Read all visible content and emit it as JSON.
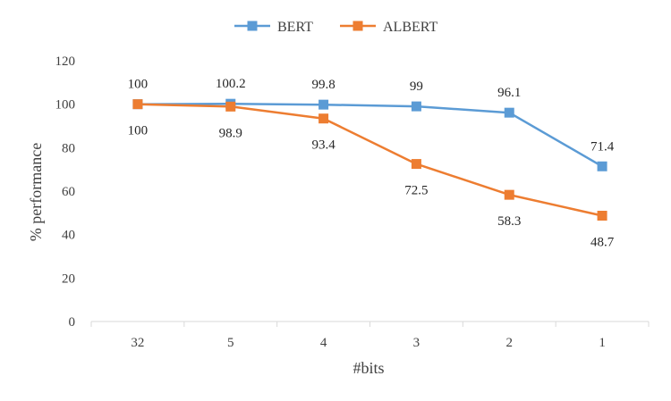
{
  "chart_data": {
    "type": "line",
    "title": "",
    "xlabel": "#bits",
    "ylabel": "% performance",
    "categories": [
      "32",
      "5",
      "4",
      "3",
      "2",
      "1"
    ],
    "ylim": [
      0,
      120
    ],
    "yticks": [
      0,
      20,
      40,
      60,
      80,
      100,
      120
    ],
    "grid": false,
    "legend_position": "top",
    "series": [
      {
        "name": "BERT",
        "color": "#5B9BD5",
        "marker": "square",
        "values": [
          100,
          100.2,
          99.8,
          99,
          96.1,
          71.4
        ],
        "labels": [
          "100",
          "100.2",
          "99.8",
          "99",
          "96.1",
          "71.4"
        ],
        "label_position": "above"
      },
      {
        "name": "ALBERT",
        "color": "#ED7D31",
        "marker": "square",
        "values": [
          100,
          98.9,
          93.4,
          72.5,
          58.3,
          48.7
        ],
        "labels": [
          "100",
          "98.9",
          "93.4",
          "72.5",
          "58.3",
          "48.7"
        ],
        "label_position": "below"
      }
    ]
  }
}
